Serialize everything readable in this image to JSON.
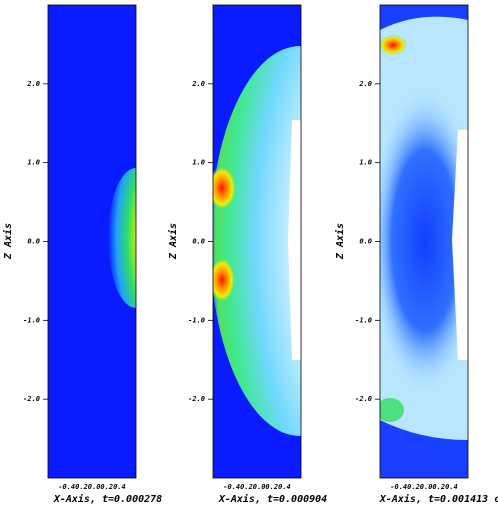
{
  "y_label": "Z Axis",
  "zlim": [
    -3,
    3
  ],
  "yticks": [
    {
      "value": 2,
      "label": "2.0"
    },
    {
      "value": 1,
      "label": "1.0"
    },
    {
      "value": 0,
      "label": "0.0"
    },
    {
      "value": -1,
      "label": "-1.0"
    },
    {
      "value": -2,
      "label": "-2.0"
    }
  ],
  "x_tick_text": "-0.40.20.00.20.4",
  "panels": [
    {
      "x_label": "X-Axis, t=0.000278"
    },
    {
      "x_label": "X-Axis, t=0.000904"
    },
    {
      "x_label": "X-Axis, t=0.001413 c"
    }
  ]
}
